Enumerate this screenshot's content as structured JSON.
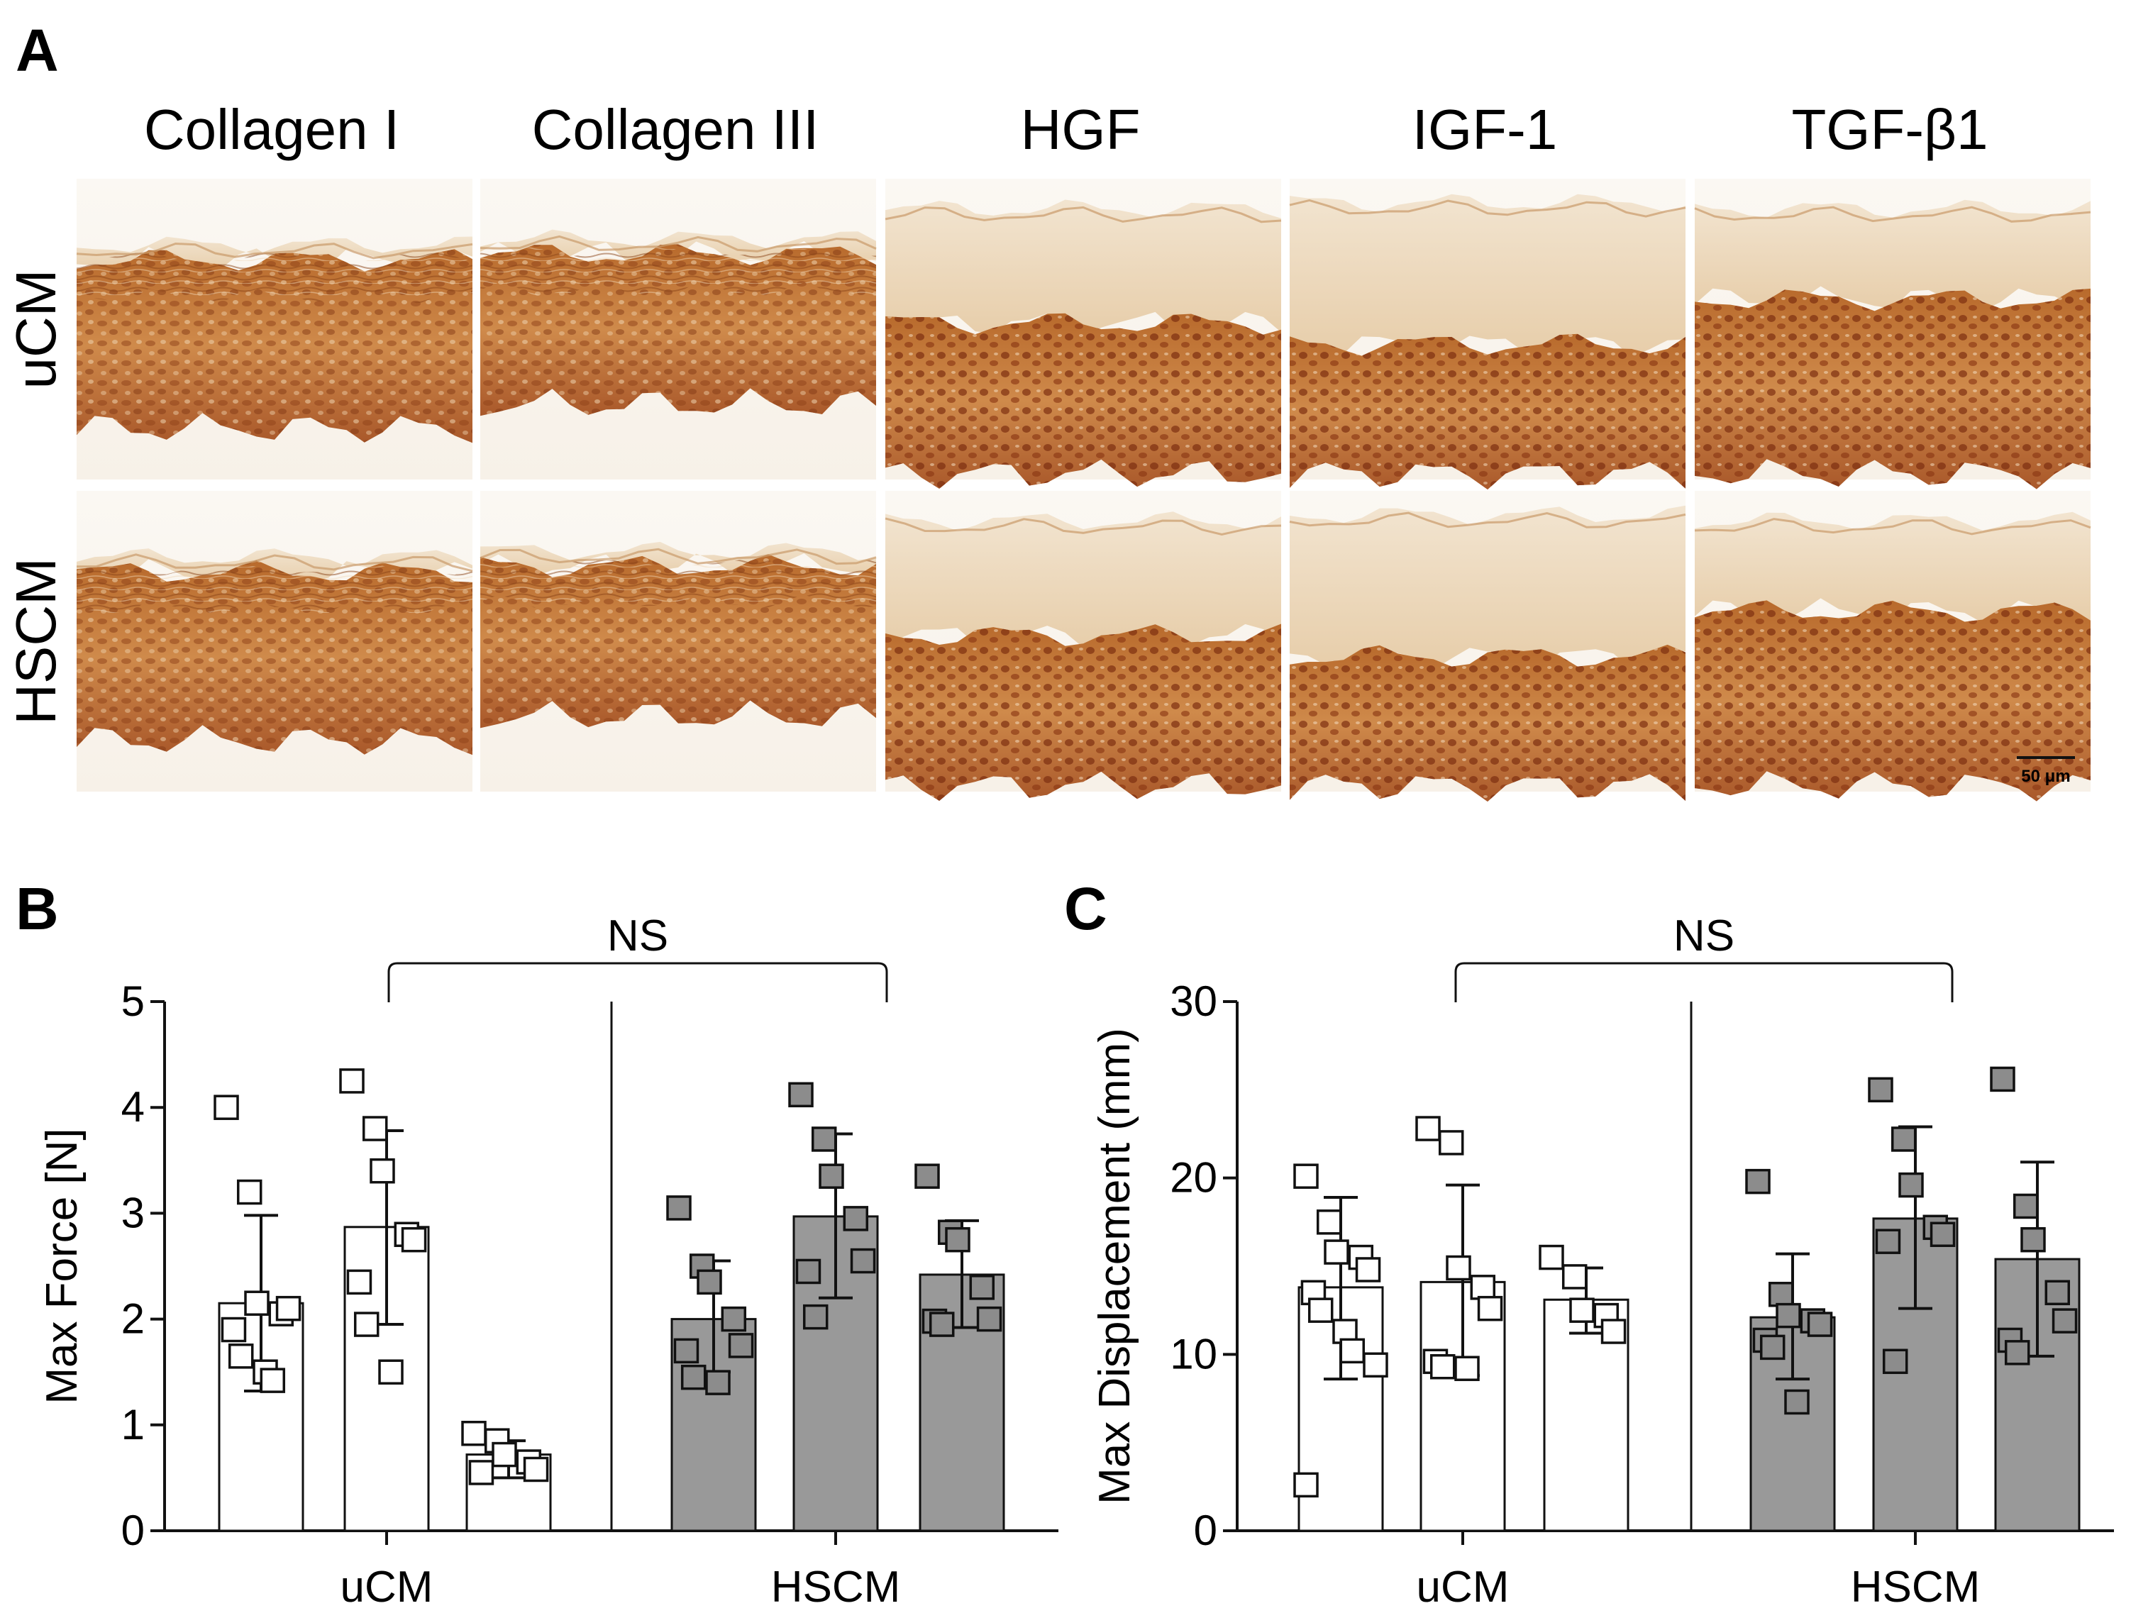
{
  "panel_a": {
    "label": "A",
    "columns": [
      "Collagen I",
      "Collagen III",
      "HGF",
      "IGF-1",
      "TGF-β1"
    ],
    "rows": [
      "uCM",
      "HSCM"
    ],
    "scale_bar": "50 μm"
  },
  "chart_data": [
    {
      "panel": "B",
      "type": "bar",
      "ylabel": "Max Force [N]",
      "ylim": [
        0,
        5
      ],
      "yticks": [
        0,
        1,
        2,
        3,
        4,
        5
      ],
      "groups": [
        "uCM",
        "HSCM"
      ],
      "significance": "NS",
      "series": [
        {
          "group": "uCM",
          "mean": 2.15,
          "sd_low": 1.32,
          "sd_high": 2.98,
          "fill": "#ffffff",
          "points": [
            4.0,
            3.2,
            2.15,
            2.05,
            2.1,
            1.9,
            1.65,
            1.5,
            1.42
          ]
        },
        {
          "group": "uCM",
          "mean": 2.87,
          "sd_low": 1.95,
          "sd_high": 3.78,
          "fill": "#ffffff",
          "points": [
            4.25,
            3.8,
            3.4,
            2.8,
            2.75,
            2.35,
            1.95,
            1.5
          ]
        },
        {
          "group": "uCM",
          "mean": 0.72,
          "sd_low": 0.5,
          "sd_high": 0.85,
          "fill": "#ffffff",
          "points": [
            0.92,
            0.85,
            0.72,
            0.65,
            0.58,
            0.55
          ]
        },
        {
          "group": "HSCM",
          "mean": 2.0,
          "sd_low": 1.5,
          "sd_high": 2.55,
          "fill": "#999999",
          "points": [
            3.05,
            2.5,
            2.35,
            2.0,
            1.75,
            1.7,
            1.45,
            1.4
          ]
        },
        {
          "group": "HSCM",
          "mean": 2.97,
          "sd_low": 2.2,
          "sd_high": 3.75,
          "fill": "#999999",
          "points": [
            4.12,
            3.7,
            3.35,
            2.95,
            2.55,
            2.45,
            2.02
          ]
        },
        {
          "group": "HSCM",
          "mean": 2.42,
          "sd_low": 1.92,
          "sd_high": 2.93,
          "fill": "#999999",
          "points": [
            3.35,
            2.82,
            2.75,
            2.3,
            2.0,
            1.98,
            1.95
          ]
        }
      ]
    },
    {
      "panel": "C",
      "type": "bar",
      "ylabel": "Max Displacement (mm)",
      "ylim": [
        0,
        30
      ],
      "yticks": [
        0,
        10,
        20,
        30
      ],
      "groups": [
        "uCM",
        "HSCM"
      ],
      "significance": "NS",
      "series": [
        {
          "group": "uCM",
          "mean": 13.8,
          "sd_low": 8.6,
          "sd_high": 18.9,
          "fill": "#ffffff",
          "points": [
            20.1,
            17.5,
            15.8,
            15.5,
            14.8,
            13.5,
            12.5,
            11.3,
            10.2,
            9.4,
            2.6
          ]
        },
        {
          "group": "uCM",
          "mean": 14.1,
          "sd_low": 8.8,
          "sd_high": 19.6,
          "fill": "#ffffff",
          "points": [
            22.8,
            22.0,
            14.9,
            13.8,
            12.6,
            9.6,
            9.3,
            9.2
          ]
        },
        {
          "group": "uCM",
          "mean": 13.1,
          "sd_low": 11.2,
          "sd_high": 14.9,
          "fill": "#ffffff",
          "points": [
            15.5,
            14.4,
            12.5,
            12.2,
            11.3
          ]
        },
        {
          "group": "HSCM",
          "mean": 12.1,
          "sd_low": 8.6,
          "sd_high": 15.7,
          "fill": "#999999",
          "points": [
            19.8,
            13.4,
            12.2,
            11.9,
            11.7,
            10.8,
            10.4,
            7.3
          ]
        },
        {
          "group": "HSCM",
          "mean": 17.7,
          "sd_low": 12.6,
          "sd_high": 22.9,
          "fill": "#999999",
          "points": [
            25.0,
            22.2,
            19.6,
            17.2,
            16.8,
            16.4,
            9.6
          ]
        },
        {
          "group": "HSCM",
          "mean": 15.4,
          "sd_low": 9.9,
          "sd_high": 20.9,
          "fill": "#999999",
          "points": [
            25.6,
            18.4,
            16.5,
            13.5,
            11.9,
            10.8,
            10.1
          ]
        }
      ]
    }
  ]
}
